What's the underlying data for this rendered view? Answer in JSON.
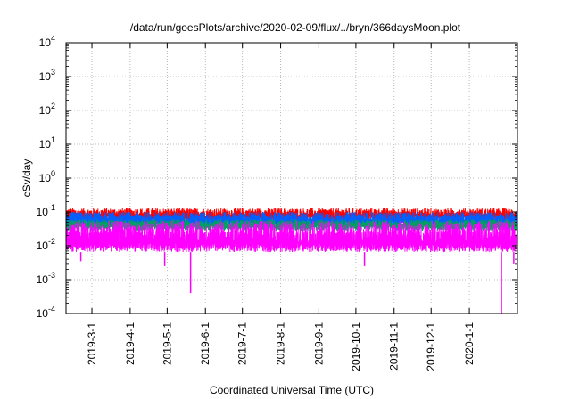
{
  "chart_data": {
    "type": "line",
    "title": "/data/run/goesPlots/archive/2020-02-09/flux/../bryn/366daysMoon.plot",
    "xlabel": "Coordinated Universal Time (UTC)",
    "ylabel": "cSv/day",
    "yscale": "log",
    "ylim": [
      0.0001,
      10000
    ],
    "xlim": [
      "2019-02-08",
      "2020-02-09"
    ],
    "grid": true,
    "legend": "none",
    "y_ticks": [
      {
        "base": "10",
        "exp": "-4",
        "value": 0.0001
      },
      {
        "base": "10",
        "exp": "-3",
        "value": 0.001
      },
      {
        "base": "10",
        "exp": "-2",
        "value": 0.01
      },
      {
        "base": "10",
        "exp": "-1",
        "value": 0.1
      },
      {
        "base": "10",
        "exp": "0",
        "value": 1
      },
      {
        "base": "10",
        "exp": "1",
        "value": 10
      },
      {
        "base": "10",
        "exp": "2",
        "value": 100
      },
      {
        "base": "10",
        "exp": "3",
        "value": 1000
      },
      {
        "base": "10",
        "exp": "4",
        "value": 10000
      }
    ],
    "x_ticks": [
      {
        "label": "2019-3-1",
        "date": "2019-03-01"
      },
      {
        "label": "2019-4-1",
        "date": "2019-04-01"
      },
      {
        "label": "2019-5-1",
        "date": "2019-05-01"
      },
      {
        "label": "2019-6-1",
        "date": "2019-06-01"
      },
      {
        "label": "2019-7-1",
        "date": "2019-07-01"
      },
      {
        "label": "2019-8-1",
        "date": "2019-08-01"
      },
      {
        "label": "2019-9-1",
        "date": "2019-09-01"
      },
      {
        "label": "2019-10-1",
        "date": "2019-10-01"
      },
      {
        "label": "2019-11-1",
        "date": "2019-11-01"
      },
      {
        "label": "2019-12-1",
        "date": "2019-12-01"
      },
      {
        "label": "2020-1-1",
        "date": "2020-01-01"
      }
    ],
    "series": [
      {
        "color": "#ff0000",
        "baseline": 0.075,
        "spread_low": 0.055,
        "spread_high": 0.13
      },
      {
        "color": "#0060ff",
        "baseline": 0.055,
        "spread_low": 0.035,
        "spread_high": 0.1
      },
      {
        "color": "#00a060",
        "baseline": 0.04,
        "spread_low": 0.028,
        "spread_high": 0.06
      },
      {
        "color": "#ff00ff",
        "baseline": 0.012,
        "spread_low": 0.0065,
        "spread_high": 0.055,
        "dips": [
          {
            "date": "2019-02-20",
            "value": 0.0035
          },
          {
            "date": "2019-04-29",
            "value": 0.0025
          },
          {
            "date": "2019-05-20",
            "value": 0.0004
          },
          {
            "date": "2019-10-08",
            "value": 0.0025
          },
          {
            "date": "2020-01-27",
            "value": 0.0001
          },
          {
            "date": "2020-02-06",
            "value": 0.003
          }
        ]
      }
    ]
  }
}
